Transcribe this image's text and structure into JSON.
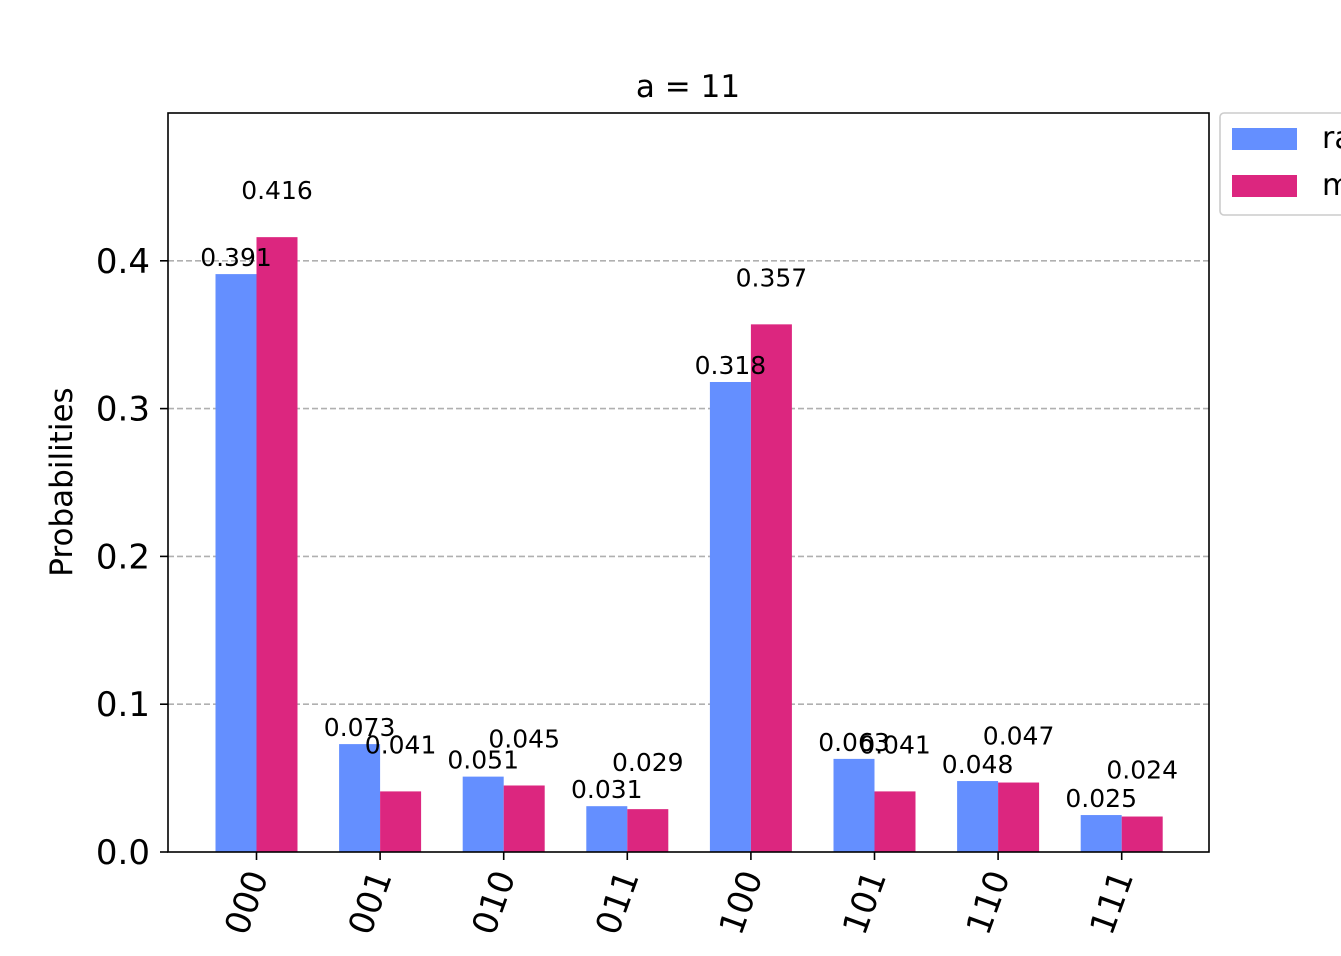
{
  "chart_data": {
    "type": "bar",
    "title": "a = 11",
    "xlabel": "",
    "ylabel": "Probabilities",
    "ylim": [
      0,
      0.5
    ],
    "yticks": [
      0.0,
      0.1,
      0.2,
      0.3,
      0.4
    ],
    "ytick_labels": [
      "0.0",
      "0.1",
      "0.2",
      "0.3",
      "0.4"
    ],
    "grid": "horizontal dashed",
    "legend_placement": "outside-top-right",
    "categories": [
      "000",
      "001",
      "010",
      "011",
      "100",
      "101",
      "110",
      "111"
    ],
    "series": [
      {
        "name": "ra",
        "color": "#648fff",
        "values": [
          0.391,
          0.073,
          0.051,
          0.031,
          0.318,
          0.063,
          0.048,
          0.025
        ],
        "value_labels": [
          "0.391",
          "0.073",
          "0.051",
          "0.031",
          "0.318",
          "0.063",
          "0.048",
          "0.025"
        ]
      },
      {
        "name": "m",
        "color": "#dc267f",
        "values": [
          0.416,
          0.041,
          0.045,
          0.029,
          0.357,
          0.041,
          0.047,
          0.024
        ],
        "value_labels": [
          "0.416",
          "0.041",
          "0.045",
          "0.029",
          "0.357",
          "0.041",
          "0.047",
          "0.024"
        ]
      }
    ]
  }
}
